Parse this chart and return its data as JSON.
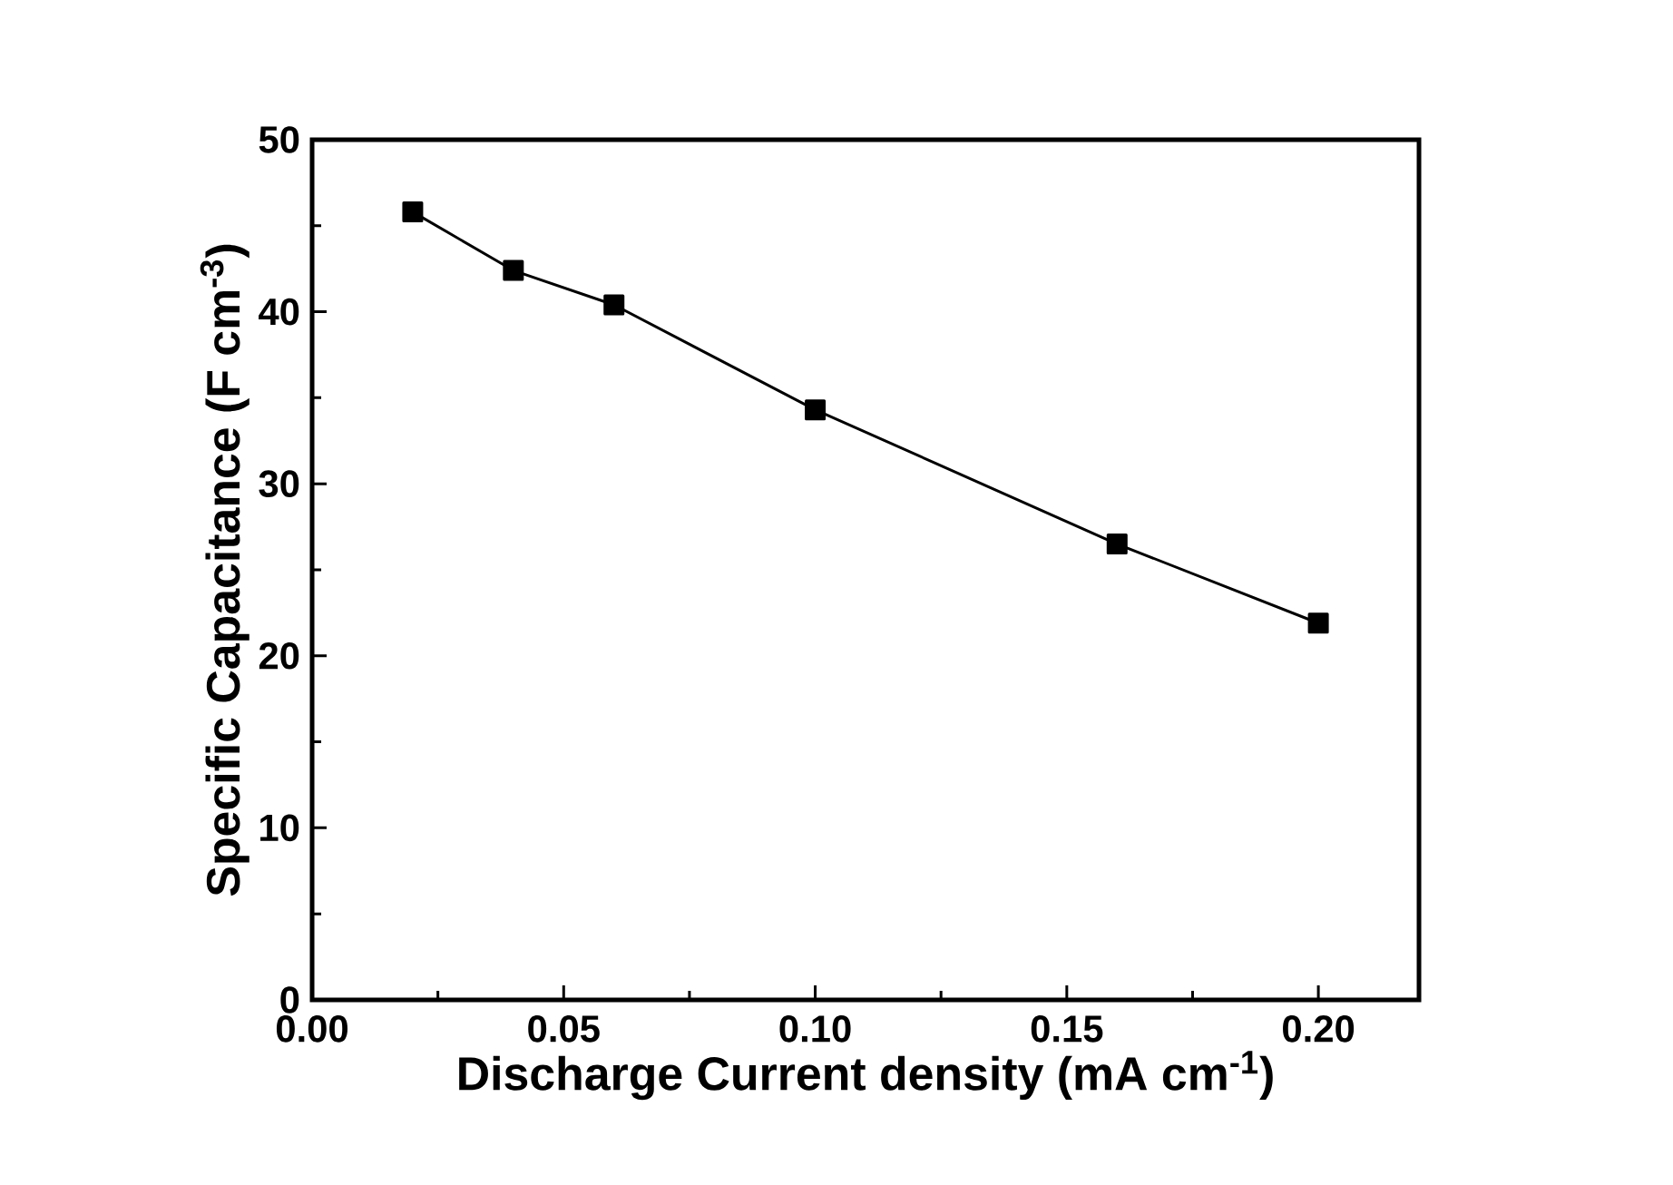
{
  "chart_data": {
    "type": "line",
    "xlabel": "Discharge Current density (mA cm$^{-1}$)",
    "ylabel": "Specific Capacitance (F cm$^{-3}$)",
    "x": [
      0.02,
      0.04,
      0.06,
      0.1,
      0.16,
      0.2
    ],
    "series": [
      {
        "color": "#000000",
        "values": [
          45.8,
          42.4,
          40.4,
          34.3,
          26.5,
          21.9
        ]
      }
    ],
    "xlim": [
      0,
      0.22
    ],
    "xticks": [
      {
        "value": 0,
        "label": "0.00"
      },
      {
        "value": 0.05,
        "label": "0.05"
      },
      {
        "value": 0.1,
        "label": "0.10"
      },
      {
        "value": 0.15,
        "label": "0.15"
      },
      {
        "value": 0.2,
        "label": "0.20"
      }
    ],
    "ylim": [
      0,
      50
    ],
    "yticks": [
      0,
      10,
      20,
      30,
      40,
      50
    ],
    "marker": "square",
    "line_style": "solid",
    "grid": false
  }
}
